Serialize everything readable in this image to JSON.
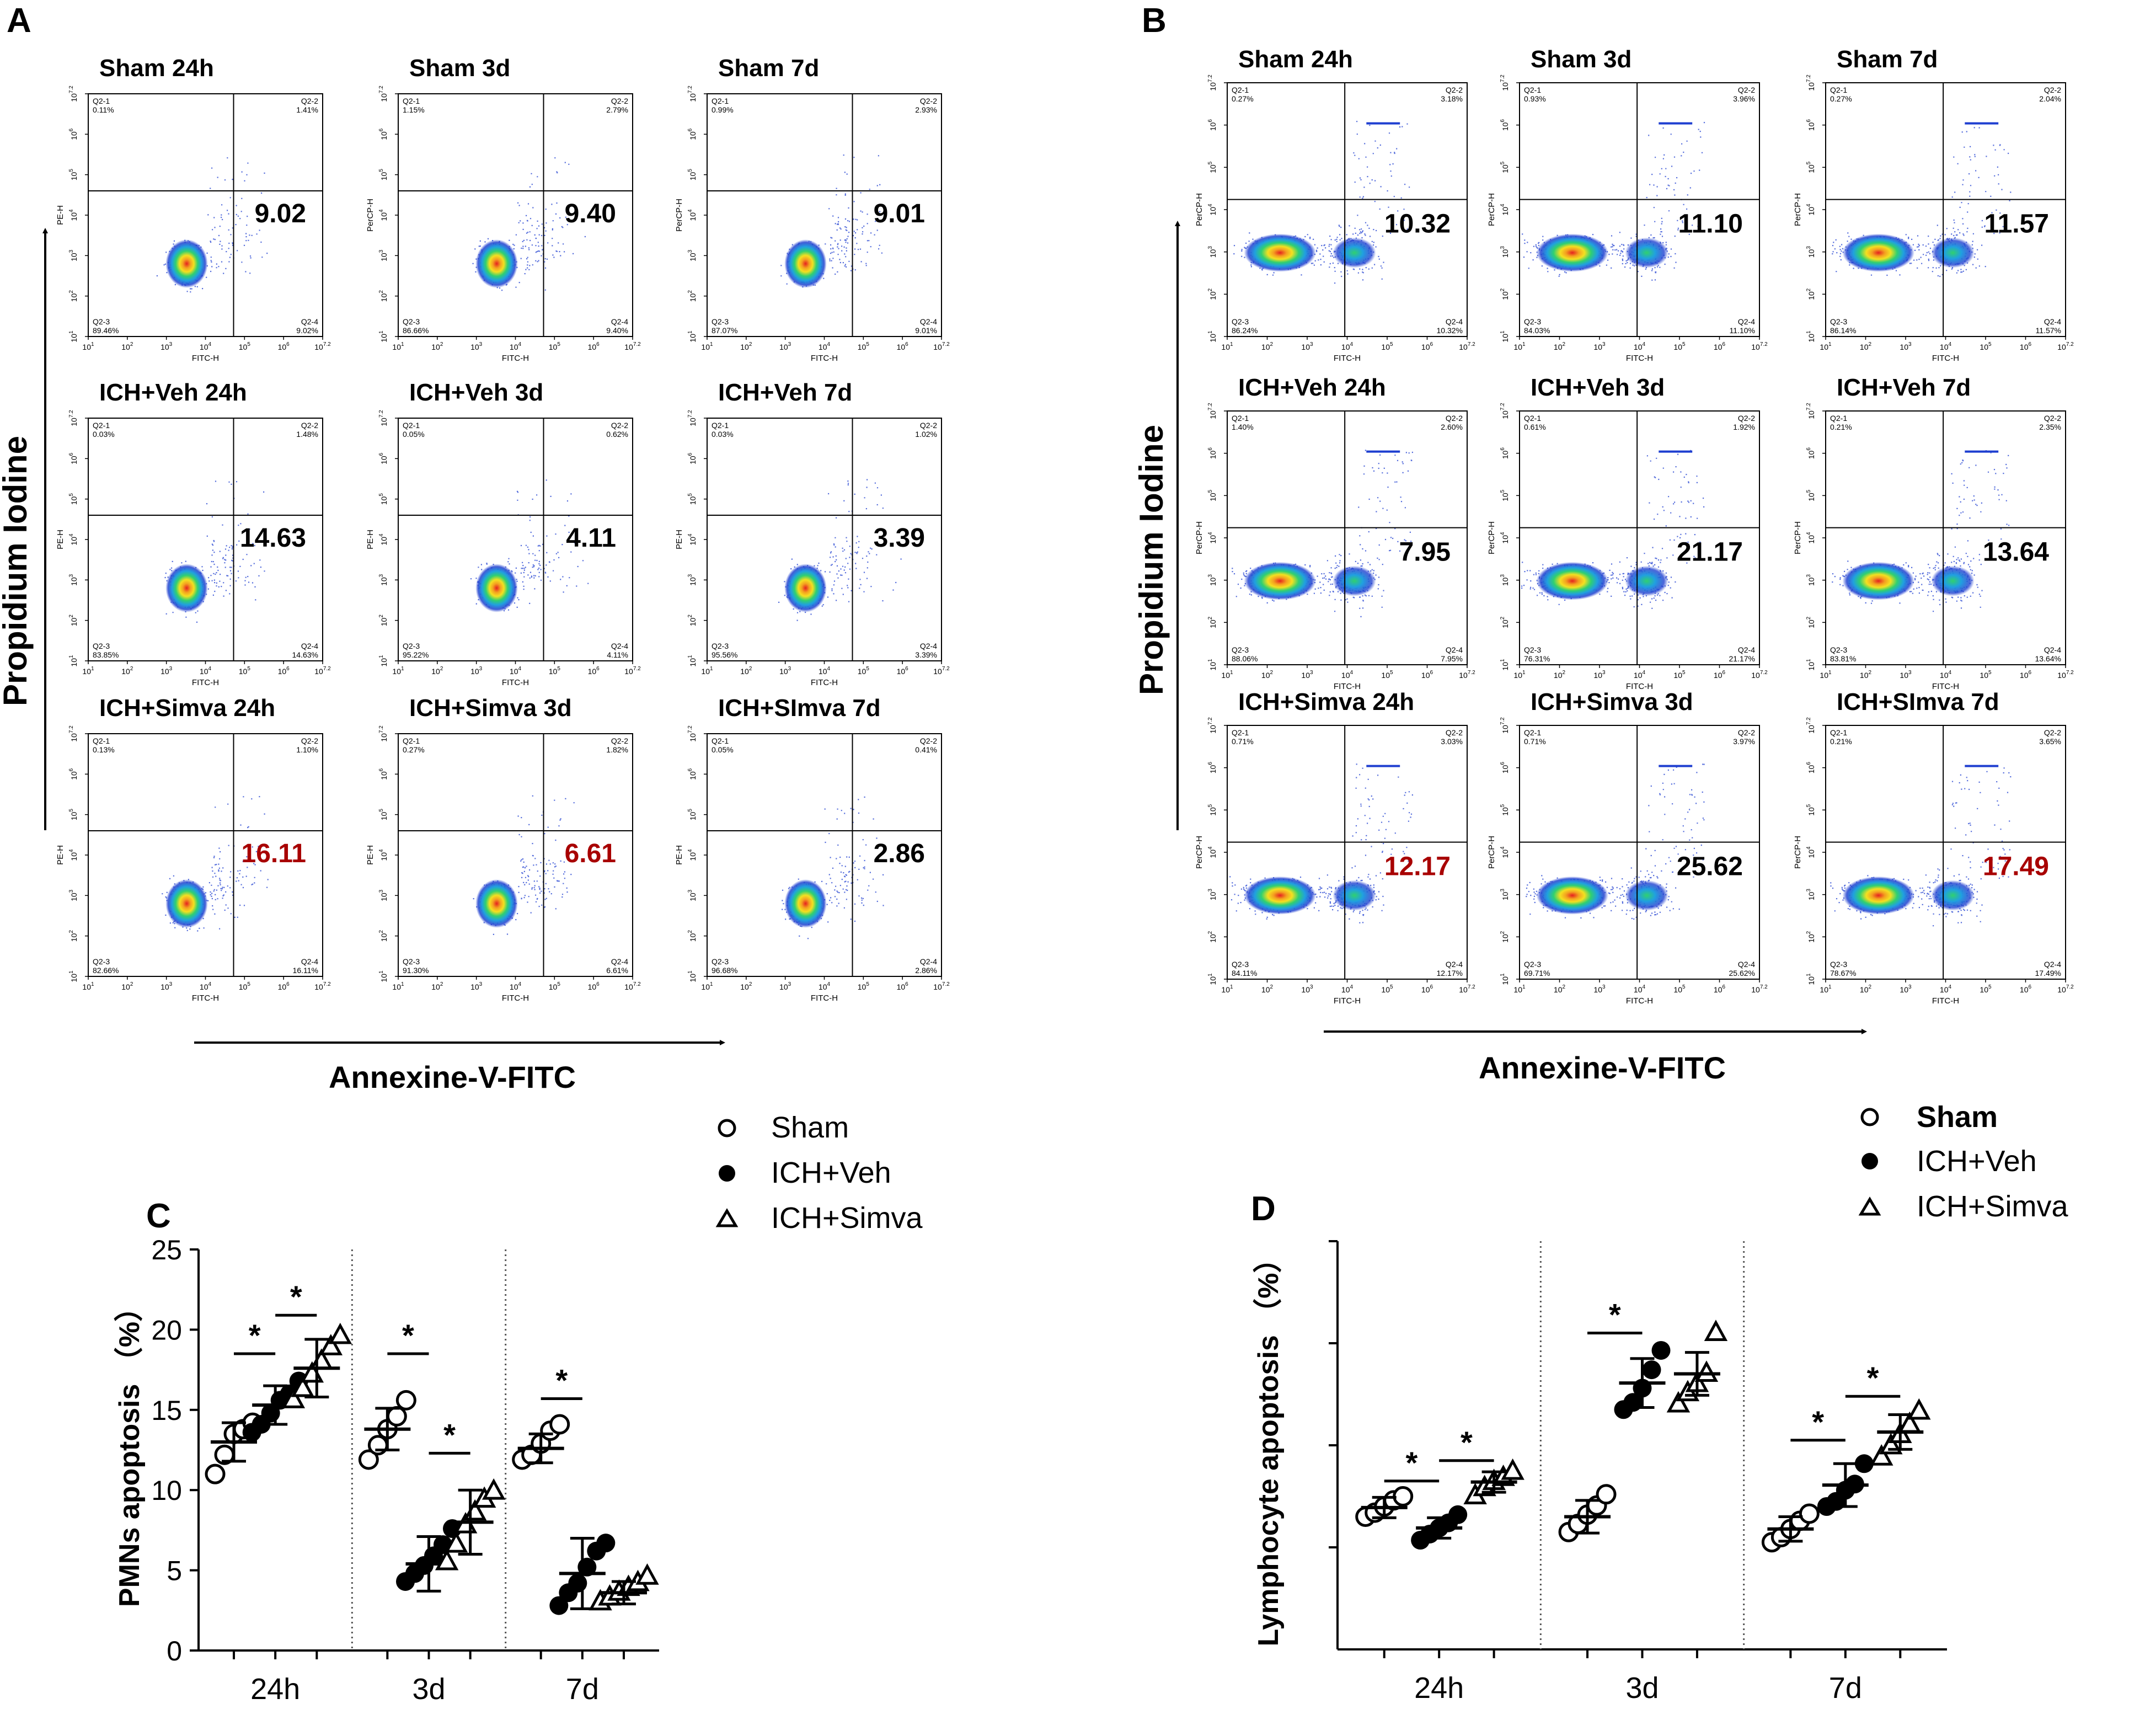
{
  "panels": {
    "A": {
      "label": "A",
      "y_axis_label": "Propidium Iodine",
      "x_axis_label": "Annexine-V-FITC",
      "rows": [
        {
          "plots": [
            {
              "title": "Sham  24h",
              "y_channel": "PE-H",
              "q1": "0.11%",
              "q2": "1.41%",
              "q3": "89.46%",
              "q4": "9.02%",
              "big": "9.02",
              "highlight": false
            },
            {
              "title": "Sham  3d",
              "y_channel": "PerCP-H",
              "q1": "1.15%",
              "q2": "2.79%",
              "q3": "86.66%",
              "q4": "9.40%",
              "big": "9.40",
              "highlight": false
            },
            {
              "title": "Sham  7d",
              "y_channel": "PerCP-H",
              "q1": "0.99%",
              "q2": "2.93%",
              "q3": "87.07%",
              "q4": "9.01%",
              "big": "9.01",
              "highlight": false
            }
          ]
        },
        {
          "plots": [
            {
              "title": "ICH+Veh  24h",
              "y_channel": "PE-H",
              "q1": "0.03%",
              "q2": "1.48%",
              "q3": "83.85%",
              "q4": "14.63%",
              "big": "14.63",
              "highlight": false
            },
            {
              "title": "ICH+Veh  3d",
              "y_channel": "PE-H",
              "q1": "0.05%",
              "q2": "0.62%",
              "q3": "95.22%",
              "q4": "4.11%",
              "big": "4.11",
              "highlight": false
            },
            {
              "title": "ICH+Veh  7d",
              "y_channel": "PE-H",
              "q1": "0.03%",
              "q2": "1.02%",
              "q3": "95.56%",
              "q4": "3.39%",
              "big": "3.39",
              "highlight": false
            }
          ]
        },
        {
          "plots": [
            {
              "title": "ICH+Simva  24h",
              "y_channel": "PE-H",
              "q1": "0.13%",
              "q2": "1.10%",
              "q3": "82.66%",
              "q4": "16.11%",
              "big": "16.11",
              "highlight": true
            },
            {
              "title": "ICH+Simva  3d",
              "y_channel": "PE-H",
              "q1": "0.27%",
              "q2": "1.82%",
              "q3": "91.30%",
              "q4": "6.61%",
              "big": "6.61",
              "highlight": true
            },
            {
              "title": "ICH+SImva  7d",
              "y_channel": "PE-H",
              "q1": "0.05%",
              "q2": "0.41%",
              "q3": "96.68%",
              "q4": "2.86%",
              "big": "2.86",
              "highlight": false
            }
          ]
        }
      ]
    },
    "B": {
      "label": "B",
      "y_axis_label": "Propidium Iodine",
      "x_axis_label": "Annexine-V-FITC",
      "rows": [
        {
          "plots": [
            {
              "title": "Sham  24h",
              "y_channel": "PerCP-H",
              "q1": "0.27%",
              "q2": "3.18%",
              "q3": "86.24%",
              "q4": "10.32%",
              "big": "10.32",
              "highlight": false
            },
            {
              "title": "Sham  3d",
              "y_channel": "PerCP-H",
              "q1": "0.93%",
              "q2": "3.96%",
              "q3": "84.03%",
              "q4": "11.10%",
              "big": "11.10",
              "highlight": false
            },
            {
              "title": "Sham  7d",
              "y_channel": "PerCP-H",
              "q1": "0.27%",
              "q2": "2.04%",
              "q3": "86.14%",
              "q4": "11.57%",
              "big": "11.57",
              "highlight": false
            }
          ]
        },
        {
          "plots": [
            {
              "title": "ICH+Veh  24h",
              "y_channel": "PerCP-H",
              "q1": "1.40%",
              "q2": "2.60%",
              "q3": "88.06%",
              "q4": "7.95%",
              "big": "7.95",
              "highlight": false
            },
            {
              "title": "ICH+Veh  3d",
              "y_channel": "PerCP-H",
              "q1": "0.61%",
              "q2": "1.92%",
              "q3": "76.31%",
              "q4": "21.17%",
              "big": "21.17",
              "highlight": false
            },
            {
              "title": "ICH+Veh  7d",
              "y_channel": "PerCP-H",
              "q1": "0.21%",
              "q2": "2.35%",
              "q3": "83.81%",
              "q4": "13.64%",
              "big": "13.64",
              "highlight": false
            }
          ]
        },
        {
          "plots": [
            {
              "title": "ICH+Simva  24h",
              "y_channel": "PerCP-H",
              "q1": "0.71%",
              "q2": "3.03%",
              "q3": "84.11%",
              "q4": "12.17%",
              "big": "12.17",
              "highlight": true
            },
            {
              "title": "ICH+Simva  3d",
              "y_channel": "PerCP-H",
              "q1": "0.71%",
              "q2": "3.97%",
              "q3": "69.71%",
              "q4": "25.62%",
              "big": "25.62",
              "highlight": false
            },
            {
              "title": "ICH+SImva  7d",
              "y_channel": "PerCP-H",
              "q1": "0.21%",
              "q2": "3.65%",
              "q3": "78.67%",
              "q4": "17.49%",
              "big": "17.49",
              "highlight": true
            }
          ]
        }
      ]
    }
  },
  "flow_axis": {
    "x_channel": "FITC-H",
    "tick_labels": [
      "10",
      "10",
      "10",
      "10",
      "10",
      "10",
      "10"
    ],
    "tick_exponents": [
      "1",
      "2",
      "3",
      "4",
      "5",
      "6",
      "7.2"
    ],
    "quadrant_names": [
      "Q2-1",
      "Q2-2",
      "Q2-3",
      "Q2-4"
    ]
  },
  "legend": {
    "items": [
      {
        "label": "Sham",
        "marker": "open-circle"
      },
      {
        "label": "ICH+Veh",
        "marker": "filled-circle"
      },
      {
        "label": "ICH+Simva",
        "marker": "open-triangle"
      }
    ]
  },
  "colors": {
    "highlight": "#a80000",
    "text": "#000000",
    "dots": "#1f3fd0",
    "hot": "#e52020",
    "warm": "#f4d020",
    "mid": "#20d070"
  },
  "chart_data": [
    {
      "panel": "C",
      "type": "scatter",
      "ylabel": "PMNs apoptosis （%）",
      "ylim": [
        0,
        25
      ],
      "yticks": [
        "0",
        "5",
        "10",
        "15",
        "20",
        "25"
      ],
      "categories": [
        "24h",
        "3d",
        "7d"
      ],
      "significance": "*",
      "series": [
        {
          "name": "Sham",
          "points": [
            [
              11.0,
              12.2,
              13.5,
              13.8,
              14.2
            ],
            [
              11.9,
              12.8,
              13.8,
              14.6,
              15.6
            ],
            [
              11.9,
              12.2,
              12.9,
              13.7,
              14.1
            ]
          ],
          "mean": [
            13.0,
            13.8,
            12.6
          ],
          "sd": [
            1.2,
            1.3,
            0.9
          ]
        },
        {
          "name": "ICH+Veh",
          "points": [
            [
              13.6,
              14.1,
              14.8,
              15.6,
              16.0,
              16.8
            ],
            [
              4.3,
              4.8,
              5.3,
              5.9,
              6.6,
              7.6
            ],
            [
              2.8,
              3.6,
              4.2,
              5.2,
              6.2,
              6.7
            ]
          ],
          "mean": [
            15.3,
            5.4,
            4.8
          ],
          "sd": [
            1.2,
            1.7,
            2.2
          ]
        },
        {
          "name": "ICH+Simva",
          "points": [
            [
              15.6,
              16.3,
              17.2,
              18.0,
              18.9,
              19.6
            ],
            [
              5.5,
              6.6,
              7.8,
              8.6,
              9.4,
              9.9
            ],
            [
              3.0,
              3.3,
              3.6,
              3.9,
              4.2,
              4.6
            ]
          ],
          "mean": [
            17.6,
            8.0,
            3.6
          ],
          "sd": [
            1.8,
            2.0,
            0.7
          ]
        }
      ],
      "comparisons": [
        {
          "group": "24h",
          "pair": "Sham-ICH+Veh",
          "y": 18.5
        },
        {
          "group": "24h",
          "pair": "ICH+Veh-ICH+Simva",
          "y": 20.9
        },
        {
          "group": "3d",
          "pair": "Sham-ICH+Veh",
          "y": 18.5
        },
        {
          "group": "3d",
          "pair": "ICH+Veh-ICH+Simva",
          "y": 12.3
        },
        {
          "group": "7d",
          "pair": "Sham-ICH+Veh",
          "y": 15.7
        }
      ]
    },
    {
      "panel": "D",
      "type": "scatter",
      "ylabel": "Lymphocyte apoptosis （%）",
      "ylim": [
        0,
        40
      ],
      "yticks": [
        "",
        "",
        "",
        "",
        ""
      ],
      "categories": [
        "24h",
        "3d",
        "7d"
      ],
      "significance": "*",
      "series": [
        {
          "name": "Sham",
          "points": [
            [
              13.0,
              13.4,
              14.0,
              14.6,
              15.0
            ],
            [
              11.5,
              12.3,
              13.2,
              14.1,
              15.2
            ],
            [
              10.5,
              11.0,
              11.8,
              12.6,
              13.3
            ]
          ],
          "mean": [
            13.9,
            13.0,
            11.8
          ],
          "sd": [
            1.0,
            1.6,
            1.2
          ]
        },
        {
          "name": "ICH+Veh",
          "points": [
            [
              10.7,
              11.3,
              11.9,
              12.4,
              13.2
            ],
            [
              23.5,
              24.2,
              25.6,
              27.4,
              29.3
            ],
            [
              14.0,
              14.5,
              15.6,
              16.2,
              18.2
            ]
          ],
          "mean": [
            11.9,
            26.1,
            16.1
          ],
          "sd": [
            1.0,
            2.4,
            2.1
          ]
        },
        {
          "name": "ICH+Simva",
          "points": [
            [
              15.0,
              15.8,
              16.4,
              16.8,
              17.4
            ],
            [
              24.0,
              25.1,
              26.0,
              27.0,
              31.0
            ],
            [
              18.8,
              19.9,
              21.0,
              22.0,
              23.3
            ]
          ],
          "mean": [
            16.4,
            27.0,
            21.3
          ],
          "sd": [
            1.0,
            2.1,
            1.7
          ]
        }
      ],
      "comparisons": [
        {
          "group": "24h",
          "pair": "Sham-ICH+Veh",
          "y": 16.5
        },
        {
          "group": "24h",
          "pair": "ICH+Veh-ICH+Simva",
          "y": 18.5
        },
        {
          "group": "3d",
          "pair": "Sham-ICH+Veh",
          "y": 31.0
        },
        {
          "group": "7d",
          "pair": "Sham-ICH+Veh",
          "y": 20.5
        },
        {
          "group": "7d",
          "pair": "ICH+Veh-ICH+Simva",
          "y": 24.8
        }
      ]
    }
  ]
}
